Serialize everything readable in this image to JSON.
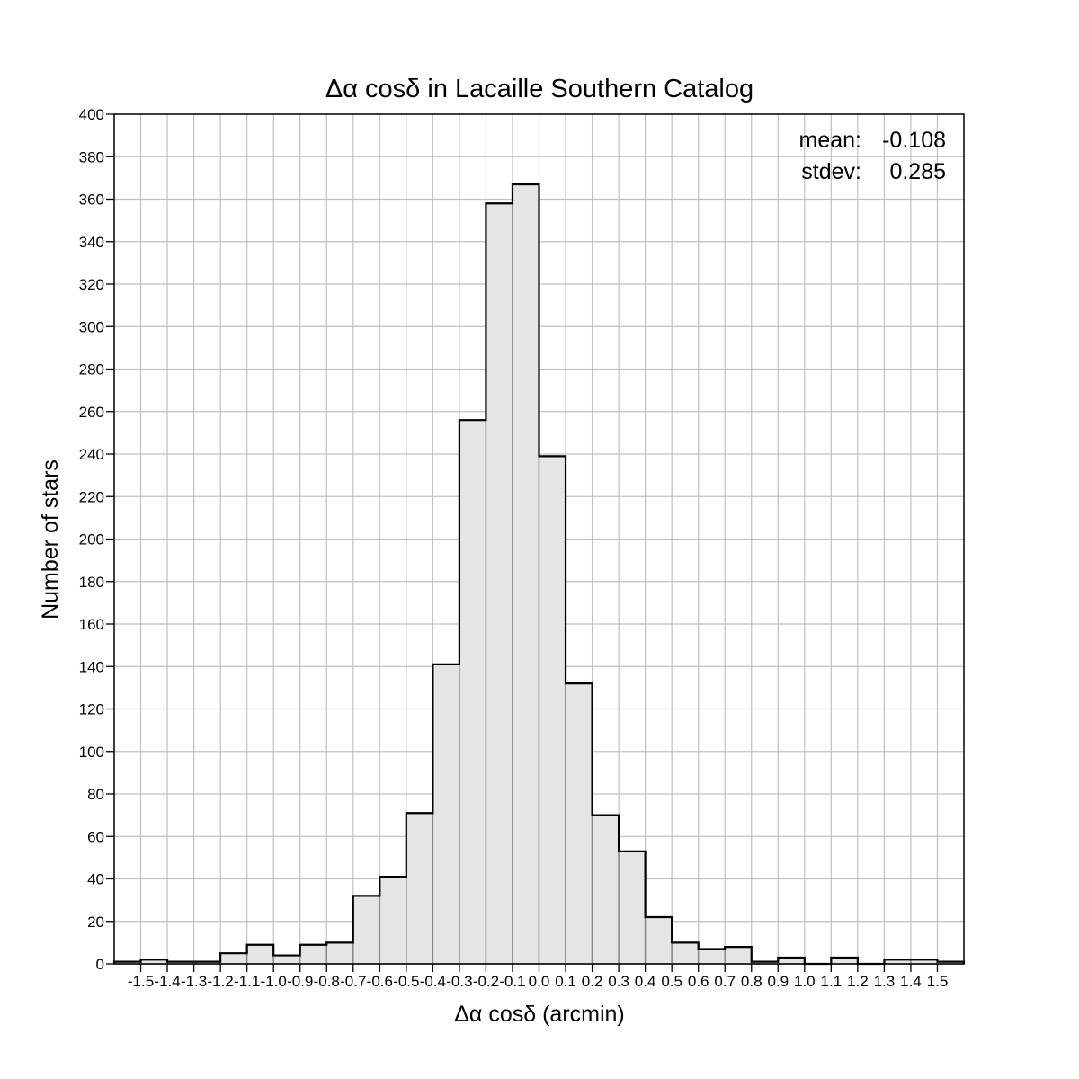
{
  "chart_data": {
    "type": "bar",
    "title": "Δα cosδ in Lacaille Southern Catalog",
    "xlabel": "Δα cosδ (arcmin)",
    "ylabel": "Number of stars",
    "xlim": [
      -1.6,
      1.6
    ],
    "ylim": [
      0,
      400
    ],
    "bin_width": 0.1,
    "bin_starts": [
      -1.6,
      -1.5,
      -1.4,
      -1.3,
      -1.2,
      -1.1,
      -1.0,
      -0.9,
      -0.8,
      -0.7,
      -0.6,
      -0.5,
      -0.4,
      -0.3,
      -0.2,
      -0.1,
      0.0,
      0.1,
      0.2,
      0.3,
      0.4,
      0.5,
      0.6,
      0.7,
      0.8,
      0.9,
      1.0,
      1.1,
      1.2,
      1.3,
      1.4,
      1.5
    ],
    "values": [
      1,
      2,
      1,
      1,
      5,
      9,
      4,
      9,
      10,
      32,
      41,
      71,
      141,
      256,
      358,
      367,
      239,
      132,
      70,
      53,
      22,
      10,
      7,
      8,
      1,
      3,
      0,
      3,
      0,
      2,
      2,
      1
    ],
    "x_ticks": [
      -1.5,
      -1.4,
      -1.3,
      -1.2,
      -1.1,
      -1.0,
      -0.9,
      -0.8,
      -0.7,
      -0.6,
      -0.5,
      -0.4,
      -0.3,
      -0.2,
      -0.1,
      0.0,
      0.1,
      0.2,
      0.3,
      0.4,
      0.5,
      0.6,
      0.7,
      0.8,
      0.9,
      1.0,
      1.1,
      1.2,
      1.3,
      1.4,
      1.5
    ],
    "x_tick_labels": [
      "-1.5",
      "-1.4",
      "-1.3",
      "-1.2",
      "-1.1",
      "-1.0",
      "-0.9",
      "-0.8",
      "-0.7",
      "-0.6",
      "-0.5",
      "-0.4",
      "-0.3",
      "-0.2",
      "-0.1",
      "0.0",
      "0.1",
      "0.2",
      "0.3",
      "0.4",
      "0.5",
      "0.6",
      "0.7",
      "0.8",
      "0.9",
      "1.0",
      "1.1",
      "1.2",
      "1.3",
      "1.4",
      "1.5"
    ],
    "y_ticks": [
      0,
      20,
      40,
      60,
      80,
      100,
      120,
      140,
      160,
      180,
      200,
      220,
      240,
      260,
      280,
      300,
      320,
      340,
      360,
      380,
      400
    ],
    "y_tick_labels": [
      "0",
      "20",
      "40",
      "60",
      "80",
      "100",
      "120",
      "140",
      "160",
      "180",
      "200",
      "220",
      "240",
      "260",
      "280",
      "300",
      "320",
      "340",
      "360",
      "380",
      "400"
    ],
    "grid": true,
    "annotations": {
      "mean_label": "mean:",
      "mean_value": "-0.108",
      "stdev_label": "stdev:",
      "stdev_value": "0.285",
      "placement": "top-right"
    },
    "colors": {
      "bar_fill": "#e5e5e5",
      "bar_inner_edge": "#888888",
      "outline": "#000000",
      "grid": "#c0c0c0"
    }
  }
}
